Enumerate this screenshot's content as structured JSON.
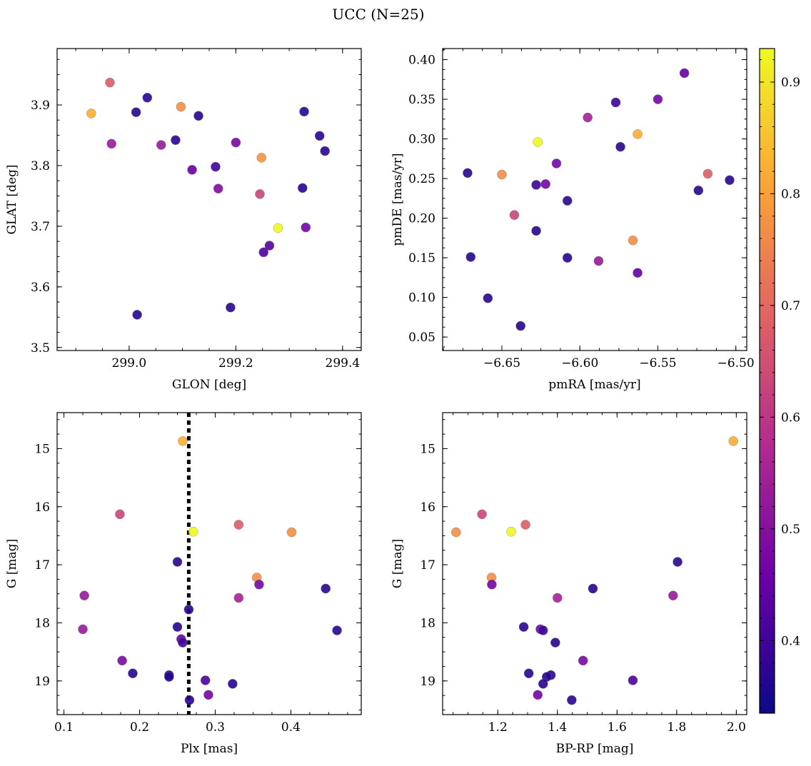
{
  "title": "UCC (N=25)",
  "colorbar": {
    "min": 0.335,
    "max": 0.93,
    "ticks": [
      0.4,
      0.5,
      0.6,
      0.7,
      0.8,
      0.9
    ],
    "tick_labels": [
      "0.4",
      "0.5",
      "0.6",
      "0.7",
      "0.8",
      "0.9"
    ],
    "colormap": "plasma"
  },
  "colors": {
    "plasma": [
      "#0d0887",
      "#6a00a8",
      "#b12a90",
      "#e16462",
      "#fca636",
      "#f0f921"
    ]
  },
  "chart_data": [
    {
      "type": "scatter",
      "id": "sky",
      "xlabel": "GLON [deg]",
      "ylabel": "GLAT [deg]",
      "xlim": [
        298.865,
        299.435
      ],
      "ylim": [
        3.495,
        3.993
      ],
      "y_inverted": false,
      "xticks": [
        299.0,
        299.2,
        299.4
      ],
      "xtick_labels": [
        "299.0",
        "299.2",
        "299.4"
      ],
      "yticks": [
        3.5,
        3.6,
        3.7,
        3.8,
        3.9
      ],
      "ytick_labels": [
        "3.5",
        "3.6",
        "3.7",
        "3.8",
        "3.9"
      ],
      "x": [
        298.929,
        298.964,
        299.034,
        299.013,
        298.967,
        299.06,
        299.097,
        299.087,
        299.13,
        299.118,
        299.162,
        299.167,
        299.2,
        299.245,
        299.248,
        299.328,
        299.357,
        299.367,
        299.325,
        299.279,
        299.331,
        299.263,
        299.252,
        299.015,
        299.19
      ],
      "y": [
        3.886,
        3.937,
        3.912,
        3.888,
        3.836,
        3.834,
        3.897,
        3.842,
        3.882,
        3.793,
        3.798,
        3.762,
        3.838,
        3.753,
        3.813,
        3.889,
        3.849,
        3.824,
        3.763,
        3.697,
        3.698,
        3.668,
        3.657,
        3.554,
        3.566
      ],
      "c": [
        0.82,
        0.68,
        0.37,
        0.37,
        0.53,
        0.53,
        0.77,
        0.37,
        0.37,
        0.45,
        0.4,
        0.49,
        0.48,
        0.63,
        0.78,
        0.37,
        0.37,
        0.37,
        0.37,
        0.93,
        0.47,
        0.43,
        0.42,
        0.37,
        0.37
      ]
    },
    {
      "type": "scatter",
      "id": "pm",
      "xlabel": "pmRA [mas/yr]",
      "ylabel": "pmDE [mas/yr]",
      "xlim": [
        -6.688,
        -6.493
      ],
      "ylim": [
        0.033,
        0.414
      ],
      "y_inverted": false,
      "xticks": [
        -6.65,
        -6.6,
        -6.55,
        -6.5
      ],
      "xtick_labels": [
        "−6.65",
        "−6.60",
        "−6.55",
        "−6.50"
      ],
      "yticks": [
        0.05,
        0.1,
        0.15,
        0.2,
        0.25,
        0.3,
        0.35,
        0.4
      ],
      "ytick_labels": [
        "0.05",
        "0.10",
        "0.15",
        "0.20",
        "0.25",
        "0.30",
        "0.35",
        "0.40"
      ],
      "x": [
        -6.533,
        -6.55,
        -6.577,
        -6.595,
        -6.574,
        -6.563,
        -6.627,
        -6.615,
        -6.628,
        -6.622,
        -6.608,
        -6.672,
        -6.65,
        -6.518,
        -6.504,
        -6.524,
        -6.642,
        -6.628,
        -6.67,
        -6.608,
        -6.566,
        -6.588,
        -6.563,
        -6.659,
        -6.638
      ],
      "y": [
        0.383,
        0.35,
        0.346,
        0.327,
        0.29,
        0.306,
        0.296,
        0.269,
        0.242,
        0.243,
        0.222,
        0.257,
        0.255,
        0.256,
        0.248,
        0.235,
        0.204,
        0.184,
        0.151,
        0.15,
        0.172,
        0.146,
        0.131,
        0.099,
        0.064
      ],
      "c": [
        0.45,
        0.47,
        0.4,
        0.55,
        0.37,
        0.82,
        0.93,
        0.47,
        0.4,
        0.47,
        0.37,
        0.37,
        0.77,
        0.68,
        0.37,
        0.37,
        0.63,
        0.37,
        0.37,
        0.37,
        0.77,
        0.53,
        0.45,
        0.37,
        0.37
      ]
    },
    {
      "type": "scatter",
      "id": "cmd-plx",
      "xlabel": "Plx [mas]",
      "ylabel": "G [mag]",
      "xlim": [
        0.091,
        0.493
      ],
      "ylim": [
        14.38,
        19.58
      ],
      "y_inverted": true,
      "xticks": [
        0.1,
        0.2,
        0.3,
        0.4
      ],
      "xtick_labels": [
        "0.1",
        "0.2",
        "0.3",
        "0.4"
      ],
      "yticks": [
        15,
        16,
        17,
        18,
        19
      ],
      "ytick_labels": [
        "15",
        "16",
        "17",
        "18",
        "19"
      ],
      "vline_x": 0.265,
      "x": [
        0.257,
        0.174,
        0.271,
        0.331,
        0.401,
        0.25,
        0.355,
        0.358,
        0.446,
        0.127,
        0.331,
        0.265,
        0.125,
        0.25,
        0.461,
        0.255,
        0.257,
        0.177,
        0.191,
        0.239,
        0.239,
        0.287,
        0.323,
        0.291,
        0.266
      ],
      "y": [
        14.87,
        16.13,
        16.43,
        16.31,
        16.44,
        16.95,
        17.22,
        17.34,
        17.41,
        17.53,
        17.57,
        17.77,
        18.11,
        18.07,
        18.13,
        18.28,
        18.34,
        18.65,
        18.87,
        18.9,
        18.93,
        18.99,
        19.05,
        19.24,
        19.33
      ],
      "c": [
        0.82,
        0.63,
        0.93,
        0.68,
        0.77,
        0.37,
        0.77,
        0.47,
        0.37,
        0.53,
        0.55,
        0.37,
        0.53,
        0.37,
        0.37,
        0.45,
        0.4,
        0.48,
        0.37,
        0.37,
        0.37,
        0.42,
        0.37,
        0.47,
        0.37
      ]
    },
    {
      "type": "scatter",
      "id": "cmd-color",
      "xlabel": "BP-RP [mag]",
      "ylabel": "G [mag]",
      "xlim": [
        1.015,
        2.035
      ],
      "ylim": [
        14.38,
        19.58
      ],
      "y_inverted": true,
      "xticks": [
        1.2,
        1.4,
        1.6,
        1.8,
        2.0
      ],
      "xtick_labels": [
        "1.2",
        "1.4",
        "1.6",
        "1.8",
        "2.0"
      ],
      "yticks": [
        15,
        16,
        17,
        18,
        19
      ],
      "ytick_labels": [
        "15",
        "16",
        "17",
        "18",
        "19"
      ],
      "x": [
        1.99,
        1.147,
        1.06,
        1.245,
        1.293,
        1.803,
        1.179,
        1.18,
        1.519,
        1.788,
        1.4,
        1.287,
        1.343,
        1.352,
        1.393,
        1.486,
        1.304,
        1.378,
        1.364,
        1.653,
        1.352,
        1.334,
        1.448
      ],
      "y": [
        14.87,
        16.13,
        16.44,
        16.43,
        16.31,
        16.95,
        17.22,
        17.34,
        17.41,
        17.53,
        17.57,
        18.07,
        18.11,
        18.13,
        18.34,
        18.65,
        18.87,
        18.9,
        18.93,
        18.99,
        19.05,
        19.24,
        19.33
      ],
      "c": [
        0.82,
        0.63,
        0.77,
        0.93,
        0.68,
        0.37,
        0.77,
        0.47,
        0.37,
        0.53,
        0.55,
        0.37,
        0.47,
        0.4,
        0.37,
        0.48,
        0.37,
        0.37,
        0.37,
        0.42,
        0.37,
        0.47,
        0.37
      ]
    }
  ]
}
